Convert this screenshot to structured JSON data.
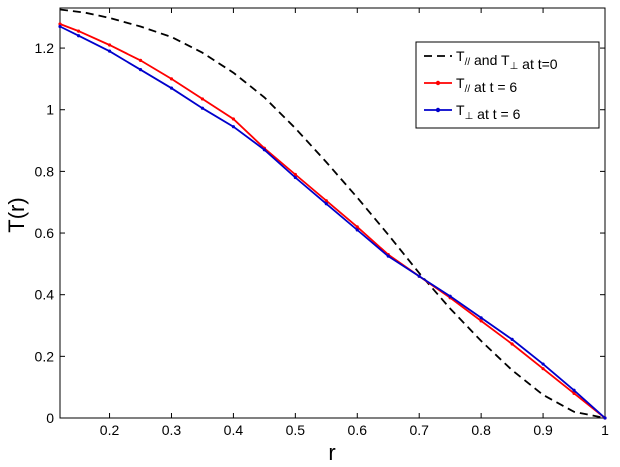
{
  "chart_data": {
    "type": "line",
    "xlabel": "r",
    "ylabel": "T(r)",
    "xlim": [
      0.12,
      1.0
    ],
    "ylim": [
      0,
      1.33
    ],
    "xticks": [
      "0.2",
      "0.3",
      "0.4",
      "0.5",
      "0.6",
      "0.7",
      "0.8",
      "0.9",
      "1"
    ],
    "xtick_values": [
      0.2,
      0.3,
      0.4,
      0.5,
      0.6,
      0.7,
      0.8,
      0.9,
      1.0
    ],
    "yticks": [
      "0",
      "0.2",
      "0.4",
      "0.6",
      "0.8",
      "1",
      "1.2"
    ],
    "ytick_values": [
      0,
      0.2,
      0.4,
      0.6,
      0.8,
      1.0,
      1.2
    ],
    "grid": false,
    "legend_position": "top-right",
    "series": [
      {
        "key": "initial",
        "legend": {
          "main": "T",
          "sub1": "//",
          "mid": " and T",
          "sub2": "⊥",
          "tail": " at t=0"
        },
        "color": "#000000",
        "style": "dashed",
        "x": [
          0.12,
          0.16,
          0.2,
          0.25,
          0.3,
          0.35,
          0.4,
          0.45,
          0.5,
          0.55,
          0.6,
          0.65,
          0.7,
          0.75,
          0.8,
          0.85,
          0.9,
          0.95,
          1.0
        ],
        "y": [
          1.325,
          1.315,
          1.298,
          1.27,
          1.236,
          1.185,
          1.12,
          1.04,
          0.94,
          0.83,
          0.715,
          0.595,
          0.47,
          0.355,
          0.25,
          0.155,
          0.075,
          0.02,
          0.0
        ]
      },
      {
        "key": "parallel",
        "legend": {
          "main": "T",
          "sub1": "//",
          "mid": "",
          "sub2": "",
          "tail": " at t = 6"
        },
        "color": "#ff0000",
        "style": "solid-markers",
        "x": [
          0.12,
          0.15,
          0.2,
          0.25,
          0.3,
          0.35,
          0.4,
          0.45,
          0.5,
          0.55,
          0.6,
          0.65,
          0.7,
          0.75,
          0.8,
          0.85,
          0.9,
          0.95,
          1.0
        ],
        "y": [
          1.278,
          1.255,
          1.21,
          1.16,
          1.1,
          1.035,
          0.97,
          0.875,
          0.79,
          0.705,
          0.62,
          0.53,
          0.46,
          0.39,
          0.315,
          0.24,
          0.16,
          0.08,
          0.0
        ]
      },
      {
        "key": "perp",
        "legend": {
          "main": "T",
          "sub1": "",
          "mid": "",
          "sub2": "⊥",
          "tail": " at t = 6"
        },
        "color": "#0000cc",
        "style": "solid-markers",
        "x": [
          0.12,
          0.15,
          0.2,
          0.25,
          0.3,
          0.35,
          0.4,
          0.45,
          0.5,
          0.55,
          0.6,
          0.65,
          0.7,
          0.75,
          0.8,
          0.85,
          0.9,
          0.95,
          1.0
        ],
        "y": [
          1.27,
          1.24,
          1.19,
          1.13,
          1.07,
          1.005,
          0.945,
          0.87,
          0.78,
          0.695,
          0.61,
          0.525,
          0.46,
          0.395,
          0.325,
          0.255,
          0.175,
          0.09,
          0.0
        ]
      }
    ]
  }
}
